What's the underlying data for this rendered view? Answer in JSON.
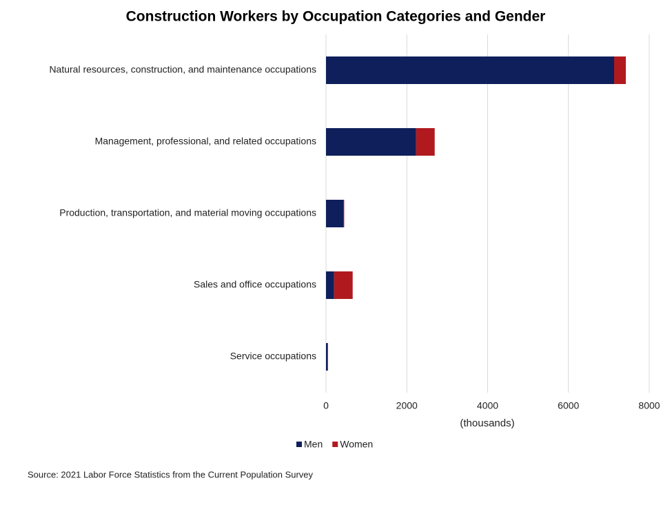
{
  "chart_data": {
    "type": "bar",
    "orientation": "horizontal",
    "stacked": true,
    "title": "Construction Workers by Occupation Categories and Gender",
    "x_label": "(thousands)",
    "source": "Source: 2021 Labor Force Statistics from the Current Population Survey",
    "categories": [
      "Natural resources, construction, and maintenance occupations",
      "Management, professional, and related occupations",
      "Production, transportation, and material moving occupations",
      "Sales and office occupations",
      "Service occupations"
    ],
    "series": [
      {
        "name": "Men",
        "color": "#0e1f5b",
        "values": [
          7130,
          2230,
          440,
          200,
          40
        ]
      },
      {
        "name": "Women",
        "color": "#b01a1f",
        "values": [
          290,
          460,
          10,
          460,
          10
        ]
      }
    ],
    "xlim": [
      0,
      8000
    ],
    "xticks": [
      0,
      2000,
      4000,
      6000,
      8000
    ],
    "grid": true,
    "legend": "bottom"
  }
}
